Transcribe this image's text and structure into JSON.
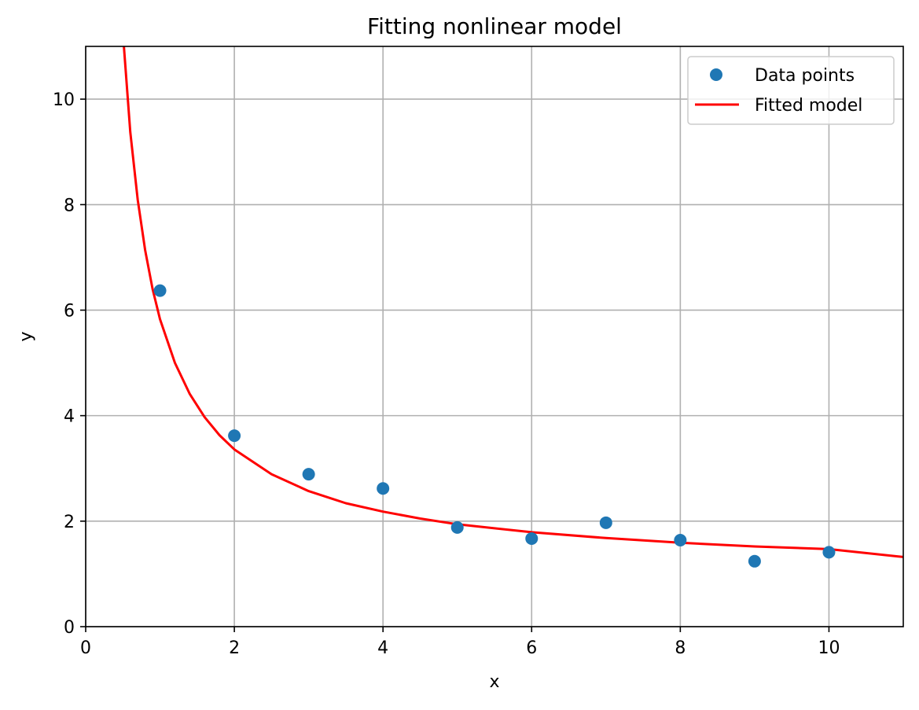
{
  "chart_data": {
    "type": "scatter",
    "title": "Fitting nonlinear model",
    "xlabel": "x",
    "ylabel": "y",
    "xlim": [
      0,
      11
    ],
    "ylim": [
      0,
      11
    ],
    "xticks": [
      0,
      2,
      4,
      6,
      8,
      10
    ],
    "xtick_labels": [
      "0",
      "2",
      "4",
      "6",
      "8",
      "10"
    ],
    "yticks": [
      0,
      2,
      4,
      6,
      8,
      10
    ],
    "ytick_labels": [
      "0",
      "2",
      "4",
      "6",
      "8",
      "10"
    ],
    "grid": true,
    "legend_position": "top-right",
    "series": [
      {
        "name": "Data points",
        "kind": "scatter",
        "color": "#1f77b4",
        "x": [
          1,
          2,
          3,
          4,
          5,
          6,
          7,
          8,
          9,
          10
        ],
        "y": [
          6.37,
          3.62,
          2.89,
          2.62,
          1.88,
          1.67,
          1.97,
          1.64,
          1.24,
          1.41
        ]
      },
      {
        "name": "Fitted model",
        "kind": "line",
        "color": "#ff0000",
        "x": [
          0.5,
          0.6,
          0.7,
          0.8,
          0.9,
          1.0,
          1.2,
          1.4,
          1.6,
          1.8,
          2.0,
          2.5,
          3.0,
          3.5,
          4.0,
          4.5,
          5.0,
          6.0,
          7.0,
          8.0,
          9.0,
          10.0,
          11.0
        ],
        "y": [
          11.26,
          9.38,
          8.09,
          7.14,
          6.4,
          5.83,
          5.0,
          4.41,
          3.97,
          3.63,
          3.36,
          2.89,
          2.57,
          2.34,
          2.18,
          2.05,
          1.94,
          1.79,
          1.68,
          1.59,
          1.52,
          1.47,
          1.32
        ]
      }
    ]
  }
}
